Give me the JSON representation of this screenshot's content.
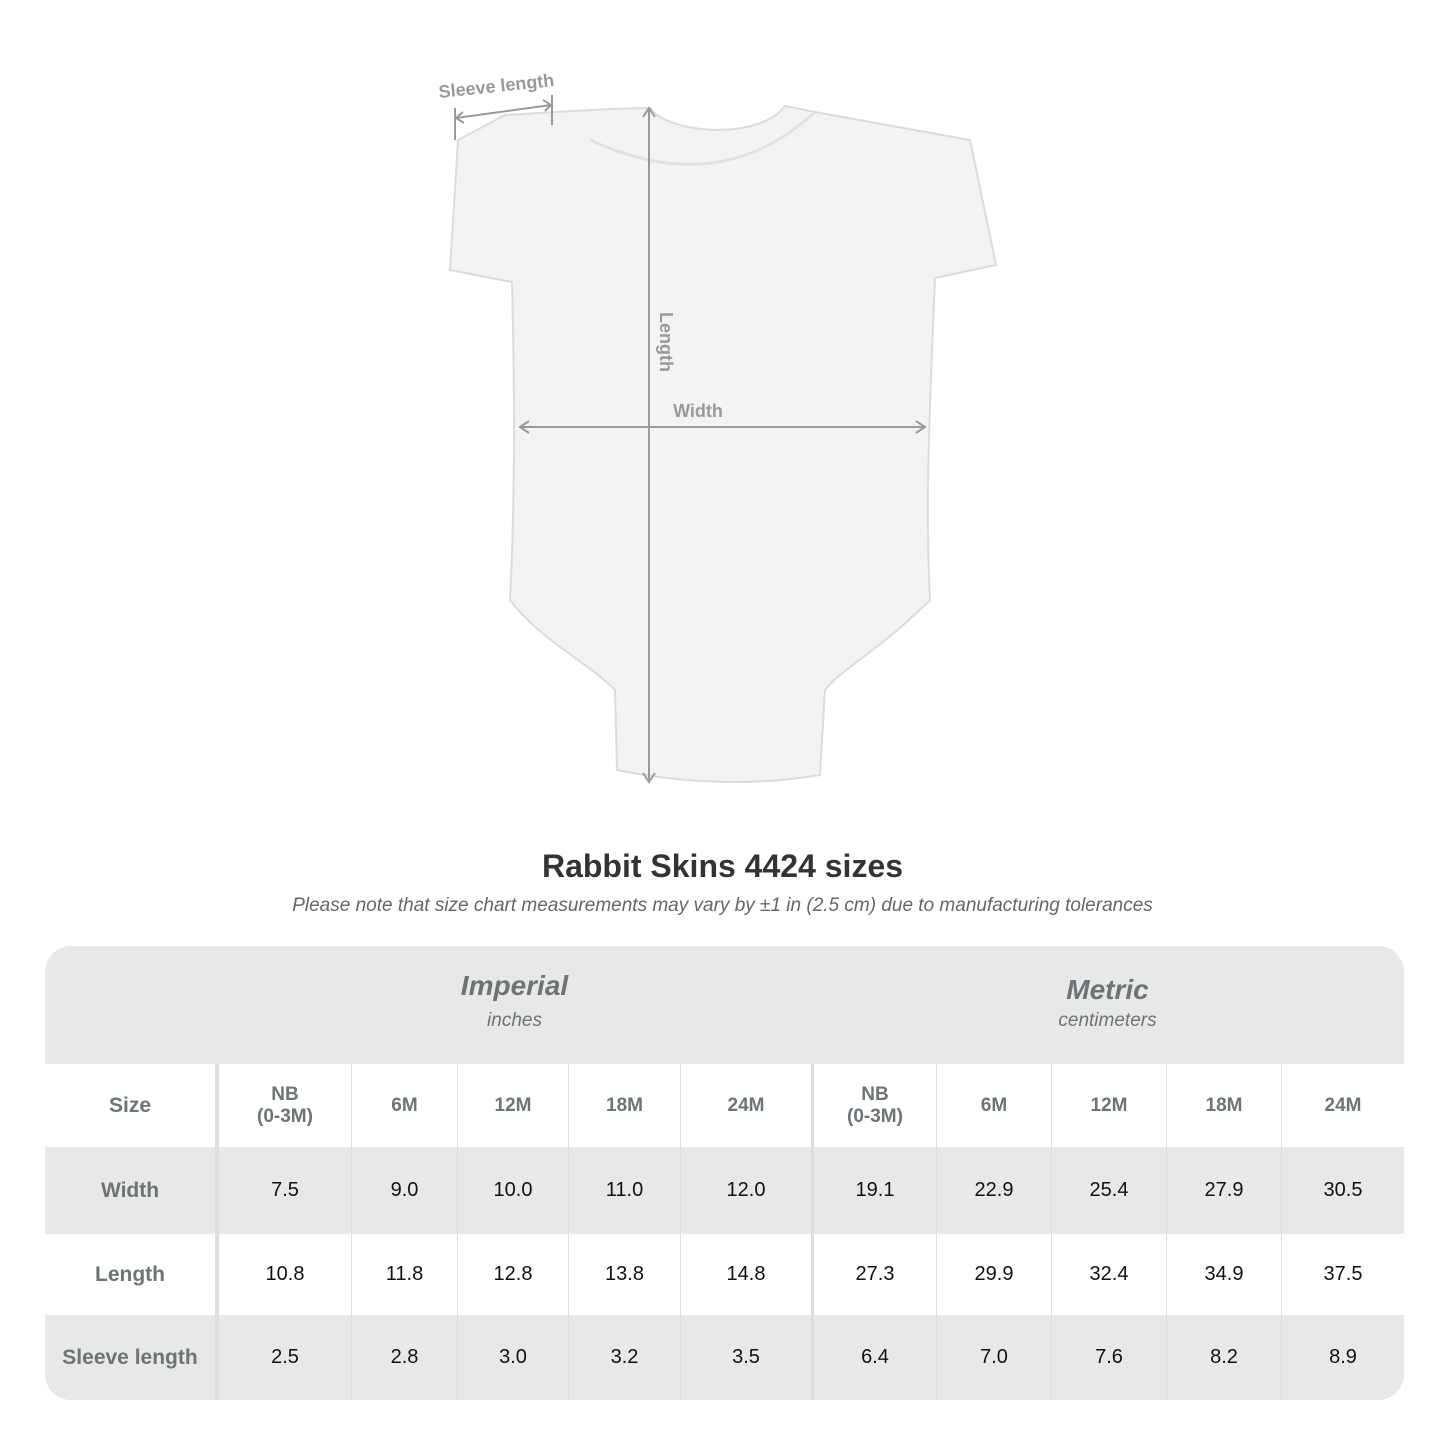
{
  "diagram": {
    "sleeve_label": "Sleeve length",
    "length_label": "Length",
    "width_label": "Width"
  },
  "title": "Rabbit Skins 4424 sizes",
  "note": "Please note that size chart measurements may vary by ±1 in (2.5 cm) due to manufacturing tolerances",
  "table": {
    "imperial": {
      "name": "Imperial",
      "unit": "inches"
    },
    "metric": {
      "name": "Metric",
      "unit": "centimeters"
    },
    "size_label": "Size",
    "sizes": [
      "NB\n(0-3M)",
      "6M",
      "12M",
      "18M",
      "24M",
      "NB\n(0-3M)",
      "6M",
      "12M",
      "18M",
      "24M"
    ],
    "rows": [
      {
        "label": "Width",
        "values": [
          "7.5",
          "9.0",
          "10.0",
          "11.0",
          "12.0",
          "19.1",
          "22.9",
          "25.4",
          "27.9",
          "30.5"
        ]
      },
      {
        "label": "Length",
        "values": [
          "10.8",
          "11.8",
          "12.8",
          "13.8",
          "14.8",
          "27.3",
          "29.9",
          "32.4",
          "34.9",
          "37.5"
        ]
      },
      {
        "label": "Sleeve length",
        "values": [
          "2.5",
          "2.8",
          "3.0",
          "3.2",
          "3.5",
          "6.4",
          "7.0",
          "7.6",
          "8.2",
          "8.9"
        ]
      }
    ]
  },
  "colors": {
    "band": "#e8e8e8",
    "label": "#6e7375",
    "arrow": "#999999"
  }
}
